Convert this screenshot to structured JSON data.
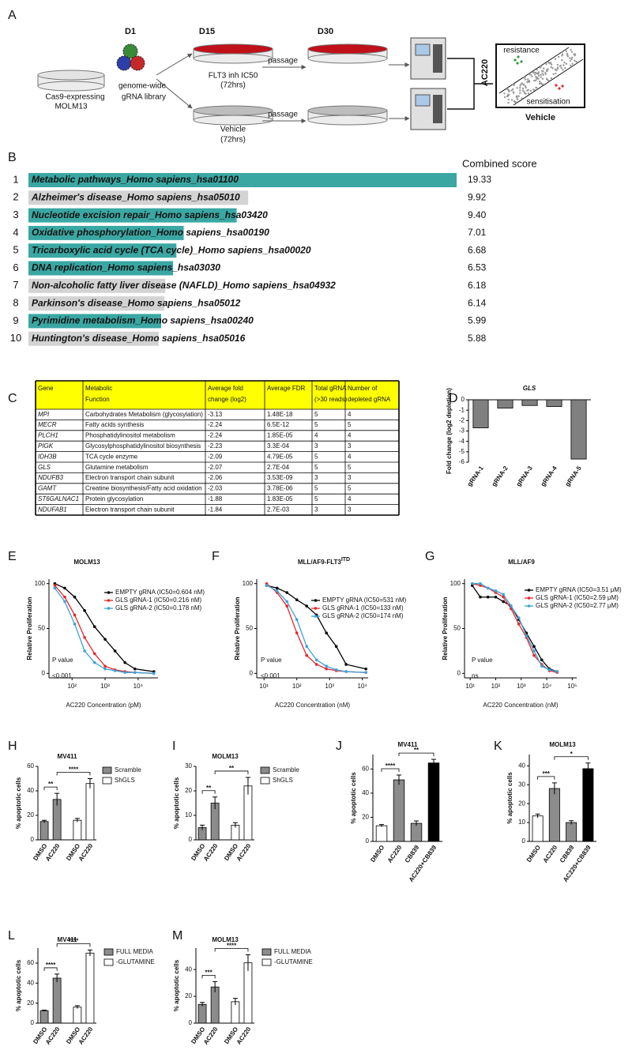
{
  "diagram": {
    "label": "A",
    "days": [
      "D1",
      "D15",
      "D30"
    ],
    "start_lines": [
      "Cas9-expressing",
      "MOLM13"
    ],
    "library_lines": [
      "genome-wide",
      "gRNA library"
    ],
    "treated_lines": [
      "FLT3 inh IC50",
      "(72hrs)"
    ],
    "vehicle_lines": [
      "Vehicle",
      "(72hrs)"
    ],
    "passage": "passage",
    "plot_y": "AC220",
    "plot_x": "Vehicle",
    "plot_top": "resistance",
    "plot_bottom": "sensitisation"
  },
  "table": {
    "label": "C",
    "header": [
      [
        "Gene"
      ],
      [
        "Metabolic",
        "Function"
      ],
      [
        "Average fold",
        "change (log2)"
      ],
      [
        "Average FDR"
      ],
      [
        "Total gRNA",
        "(>30 reads)"
      ],
      [
        "Number of",
        "depleted gRNA"
      ]
    ],
    "header_color": "#ffff00",
    "rows": [
      [
        "MPI",
        "Carbohydrates Metabolism (glycosylation)",
        "-3.13",
        "1.48E-18",
        "5",
        "4"
      ],
      [
        "MECR",
        "Fatty acids synthesis",
        "-2.24",
        "6.5E-12",
        "5",
        "5"
      ],
      [
        "PLCH1",
        "Phosphatidylinositol metabolism",
        "-2.24",
        "1.85E-05",
        "4",
        "4"
      ],
      [
        "PIGK",
        "Glycosylphosphatidylinositol biosynthesis",
        "-2.23",
        "3.3E-04",
        "3",
        "3"
      ],
      [
        "IDH3B",
        "TCA cycle enzyme",
        "-2.09",
        "4.79E-05",
        "5",
        "4"
      ],
      [
        "GLS",
        "Glutamine metabolism",
        "-2.07",
        "2.7E-04",
        "5",
        "5"
      ],
      [
        "NDUFB3",
        "Electron transport chain subunit",
        "-2.06",
        "3.53E-09",
        "3",
        "3"
      ],
      [
        "GAMT",
        "Creatine biosynthesis/Fatty acid oxidation",
        "-2.03",
        "3.78E-06",
        "5",
        "5"
      ],
      [
        "ST6GALNAC1",
        "Protein glycosylation",
        "-1.88",
        "1.83E-05",
        "5",
        "4"
      ],
      [
        "NDUFAB1",
        "Electron transport chain subunit",
        "-1.84",
        "2.7E-03",
        "3",
        "3"
      ]
    ],
    "highlight": {
      "row": 5,
      "color": "#e8262b"
    }
  },
  "chart_data": [
    {
      "type": "barh",
      "panel": "B",
      "value_header": "Combined score",
      "ranks": [
        1,
        2,
        3,
        4,
        5,
        6,
        7,
        8,
        9,
        10
      ],
      "categories": [
        "Metabolic pathways_Homo sapiens_hsa01100",
        "Alzheimer's disease_Homo sapiens_hsa05010",
        "Nucleotide excision repair_Homo sapiens_hsa03420",
        "Oxidative phosphorylation_Homo sapiens_hsa00190",
        "Tricarboxylic acid cycle (TCA cycle)_Homo sapiens_hsa00020",
        "DNA replication_Homo sapiens_hsa03030",
        "Non-alcoholic fatty liver disease (NAFLD)_Homo sapiens_hsa04932",
        "Parkinson's disease_Homo sapiens_hsa05012",
        "Pyrimidine metabolism_Homo sapiens_hsa00240",
        "Huntington's disease_Homo sapiens_hsa05016"
      ],
      "values": [
        19.33,
        9.92,
        9.4,
        7.01,
        6.68,
        6.53,
        6.18,
        6.14,
        5.99,
        5.88
      ],
      "value_labels": [
        "19.33",
        "9.92",
        "9.40",
        "7.01",
        "6.68",
        "6.53",
        "6.18",
        "6.14",
        "5.99",
        "5.88"
      ],
      "colors": [
        "#3aa7a3",
        "#d3d3d3",
        "#3aa7a3",
        "#3aa7a3",
        "#3aa7a3",
        "#3aa7a3",
        "#d3d3d3",
        "#d3d3d3",
        "#3aa7a3",
        "#d3d3d3"
      ],
      "label_colors": [
        "#111111",
        "#9a9a9a",
        "#111111",
        "#111111",
        "#111111",
        "#111111",
        "#9a9a9a",
        "#9a9a9a",
        "#111111",
        "#9a9a9a"
      ]
    },
    {
      "type": "bar",
      "panel": "D",
      "title": "GLS",
      "ylabel": "Fold change (log2 depletion)",
      "categories": [
        "gRNA-1",
        "gRNA-2",
        "gRNA-3",
        "gRNA-4",
        "gRNA-5"
      ],
      "values": [
        -2.7,
        -0.8,
        -0.55,
        -0.65,
        -5.7
      ],
      "colors": [
        "#808080",
        "#808080",
        "#808080",
        "#808080",
        "#808080"
      ],
      "ylim": [
        -6,
        0
      ],
      "yticks": [
        -6,
        -5,
        -4,
        -3,
        -2,
        -1,
        0
      ]
    },
    {
      "type": "line",
      "panel": "E",
      "title": "MOLM13",
      "xlabel": "AC220 Concentration (pM)",
      "ylabel": "Relative Proliferation",
      "annotation": [
        "P value",
        "<0.001"
      ],
      "log_x": true,
      "x": [
        30,
        60,
        120,
        240,
        480,
        1000,
        2000,
        4000,
        8000,
        30000
      ],
      "series": [
        {
          "name": "EMPTY gRNA (IC50=0.604 nM)",
          "color": "#000000",
          "values": [
            100,
            95,
            85,
            70,
            52,
            38,
            25,
            12,
            5,
            2
          ]
        },
        {
          "name": "GLS gRNA-1 (IC50=0.216 nM)",
          "color": "#e8262b",
          "values": [
            98,
            85,
            65,
            40,
            22,
            8,
            4,
            2,
            1,
            0
          ]
        },
        {
          "name": "GLS gRNA-2 (IC50=0.178 nM)",
          "color": "#3ba3d9",
          "values": [
            95,
            80,
            55,
            25,
            12,
            5,
            3,
            1,
            1,
            0
          ]
        }
      ],
      "xlim": [
        20,
        40000
      ],
      "xticks": [
        {
          "value": 100,
          "label": "10²"
        },
        {
          "value": 1000,
          "label": "10³"
        },
        {
          "value": 10000,
          "label": "10⁴"
        }
      ],
      "ylim": [
        -5,
        105
      ],
      "yticks": [
        0,
        50,
        100
      ]
    },
    {
      "type": "line",
      "panel": "F",
      "title": "MLL/AF9-FLT3",
      "title_superscript": "ITD",
      "xlabel": "AC220 Concentration (nM)",
      "ylabel": "Relative Proliferation",
      "annotation": [
        "P value",
        "<0.001"
      ],
      "log_x": true,
      "x": [
        12,
        25,
        50,
        100,
        200,
        400,
        800,
        1600,
        3200,
        12800
      ],
      "series": [
        {
          "name": "EMPTY gRNA (IC50=531 nM)",
          "color": "#000000",
          "values": [
            98,
            95,
            90,
            82,
            75,
            65,
            45,
            30,
            10,
            5
          ]
        },
        {
          "name": "GLS gRNA-1 (IC50=133 nM)",
          "color": "#e8262b",
          "values": [
            100,
            90,
            75,
            45,
            20,
            10,
            5,
            3,
            2,
            1
          ]
        },
        {
          "name": "GLS gRNA-2 (IC50=174 nM)",
          "color": "#3ba3d9",
          "values": [
            98,
            92,
            80,
            60,
            30,
            15,
            8,
            4,
            2,
            1
          ]
        }
      ],
      "xlim": [
        6,
        15000
      ],
      "xticks": [
        {
          "value": 10,
          "label": "10¹"
        },
        {
          "value": 100,
          "label": "10²"
        },
        {
          "value": 1000,
          "label": "10³"
        },
        {
          "value": 10000,
          "label": "10⁴"
        }
      ],
      "ylim": [
        -5,
        105
      ],
      "yticks": [
        0,
        50,
        100
      ]
    },
    {
      "type": "line",
      "panel": "G",
      "title": "MLL/AF9",
      "xlabel": "AC220 Concentration (nM)",
      "ylabel": "Relative Proliferation",
      "annotation": [
        "P value",
        "ns"
      ],
      "log_x": true,
      "x": [
        12,
        25,
        50,
        100,
        200,
        400,
        800,
        1600,
        3200,
        6400,
        12800,
        25600
      ],
      "series": [
        {
          "name": "EMPTY gRNA (IC50=3.51 μM)",
          "color": "#000000",
          "values": [
            98,
            85,
            85,
            85,
            80,
            75,
            60,
            45,
            30,
            15,
            5,
            2
          ]
        },
        {
          "name": "GLS gRNA-1 (IC50=2.59 μM)",
          "color": "#e8262b",
          "values": [
            100,
            98,
            95,
            90,
            85,
            72,
            55,
            40,
            20,
            10,
            3,
            1
          ]
        },
        {
          "name": "GLS gRNA-2 (IC50=2.77 μM)",
          "color": "#3ba3d9",
          "values": [
            100,
            100,
            95,
            92,
            88,
            75,
            62,
            42,
            25,
            8,
            4,
            2
          ]
        }
      ],
      "xlim": [
        6,
        150000
      ],
      "xticks": [
        {
          "value": 10,
          "label": "10¹"
        },
        {
          "value": 100,
          "label": "10²"
        },
        {
          "value": 1000,
          "label": "10³"
        },
        {
          "value": 10000,
          "label": "10⁴"
        },
        {
          "value": 100000,
          "label": "10⁵"
        }
      ],
      "ylim": [
        -5,
        105
      ],
      "yticks": [
        0,
        50,
        100
      ]
    },
    {
      "type": "bar",
      "panel": "H",
      "title": "MV411",
      "ylabel": "% apoptotic cells",
      "categories": [
        "DMSO",
        "AC220",
        "DMSO",
        "AC220"
      ],
      "values": [
        15,
        33,
        16,
        46
      ],
      "errors": [
        1,
        5,
        1.5,
        4
      ],
      "colors": [
        "#8c8c8c",
        "#8c8c8c",
        "#ffffff",
        "#ffffff"
      ],
      "legend": [
        {
          "name": "Scramble",
          "color": "#8c8c8c"
        },
        {
          "name": "ShGLS",
          "color": "#ffffff"
        }
      ],
      "brackets": [
        {
          "text": "**",
          "from": 0,
          "to": 1
        },
        {
          "text": "****",
          "from": 1,
          "to": 3
        }
      ],
      "ylim": [
        0,
        60
      ],
      "yticks": [
        0,
        20,
        40,
        60
      ]
    },
    {
      "type": "bar",
      "panel": "I",
      "title": "MOLM13",
      "ylabel": "% apoptotic cells",
      "categories": [
        "DMSO",
        "AC220",
        "DMSO",
        "AC220"
      ],
      "values": [
        5,
        15,
        6,
        22
      ],
      "errors": [
        1,
        2.5,
        1,
        3.5
      ],
      "colors": [
        "#8c8c8c",
        "#8c8c8c",
        "#ffffff",
        "#ffffff"
      ],
      "legend": [
        {
          "name": "Scramble",
          "color": "#8c8c8c"
        },
        {
          "name": "ShGLS",
          "color": "#ffffff"
        }
      ],
      "brackets": [
        {
          "text": "**",
          "from": 0,
          "to": 1
        },
        {
          "text": "**",
          "from": 1,
          "to": 3
        }
      ],
      "ylim": [
        0,
        30
      ],
      "yticks": [
        0,
        10,
        20,
        30
      ]
    },
    {
      "type": "bar",
      "panel": "J",
      "title": "MV411",
      "ylabel": "% apoptotic cells",
      "categories": [
        "DMSO",
        "AC220",
        "CB839",
        "AC220+CB839"
      ],
      "values": [
        13,
        51,
        15,
        65
      ],
      "errors": [
        1,
        4,
        2,
        3
      ],
      "colors": [
        "#ffffff",
        "#8c8c8c",
        "#8c8c8c",
        "#000000"
      ],
      "brackets": [
        {
          "text": "****",
          "from": 0,
          "to": 1
        },
        {
          "text": "**",
          "from": 1,
          "to": 3
        }
      ],
      "ylim": [
        0,
        72
      ],
      "yticks": [
        0,
        20,
        40,
        60
      ]
    },
    {
      "type": "bar",
      "panel": "K",
      "title": "MOLM13",
      "ylabel": "% apoptotic cells",
      "categories": [
        "DMSO",
        "AC220",
        "CB839",
        "AC220+CB839"
      ],
      "values": [
        13.5,
        28,
        10,
        38.5
      ],
      "errors": [
        1,
        3,
        1,
        3
      ],
      "colors": [
        "#ffffff",
        "#8c8c8c",
        "#8c8c8c",
        "#000000"
      ],
      "brackets": [
        {
          "text": "***",
          "from": 0,
          "to": 1
        },
        {
          "text": "*",
          "from": 1,
          "to": 3
        }
      ],
      "ylim": [
        0,
        46
      ],
      "yticks": [
        0,
        10,
        20,
        30,
        40
      ]
    },
    {
      "type": "bar",
      "panel": "L",
      "title": "MV411",
      "ylabel": "% apoptotic cells",
      "categories": [
        "DMSO",
        "AC220",
        "DMSO",
        "AC220"
      ],
      "values": [
        12.5,
        45,
        16,
        70
      ],
      "errors": [
        0.5,
        4,
        1.5,
        3
      ],
      "colors": [
        "#8c8c8c",
        "#8c8c8c",
        "#ffffff",
        "#ffffff"
      ],
      "legend": [
        {
          "name": "FULL MEDIA",
          "color": "#8c8c8c"
        },
        {
          "name": "-GLUTAMINE",
          "color": "#ffffff"
        }
      ],
      "brackets": [
        {
          "text": "****",
          "from": 0,
          "to": 1
        },
        {
          "text": "****",
          "from": 1,
          "to": 3
        }
      ],
      "ylim": [
        0,
        75
      ],
      "yticks": [
        0,
        20,
        40,
        60
      ]
    },
    {
      "type": "bar",
      "panel": "M",
      "title": "MOLM13",
      "ylabel": "% apoptotic cells",
      "categories": [
        "DMSO",
        "AC220",
        "DMSO",
        "AC220"
      ],
      "values": [
        14,
        27,
        16,
        45
      ],
      "errors": [
        1.5,
        4,
        2.5,
        6
      ],
      "colors": [
        "#8c8c8c",
        "#8c8c8c",
        "#ffffff",
        "#ffffff"
      ],
      "legend": [
        {
          "name": "FULL MEDIA",
          "color": "#8c8c8c"
        },
        {
          "name": "-GLUTAMINE",
          "color": "#ffffff"
        }
      ],
      "brackets": [
        {
          "text": "***",
          "from": 0,
          "to": 1
        },
        {
          "text": "****",
          "from": 1,
          "to": 3
        }
      ],
      "ylim": [
        0,
        56
      ],
      "yticks": [
        0,
        20,
        40
      ]
    }
  ]
}
